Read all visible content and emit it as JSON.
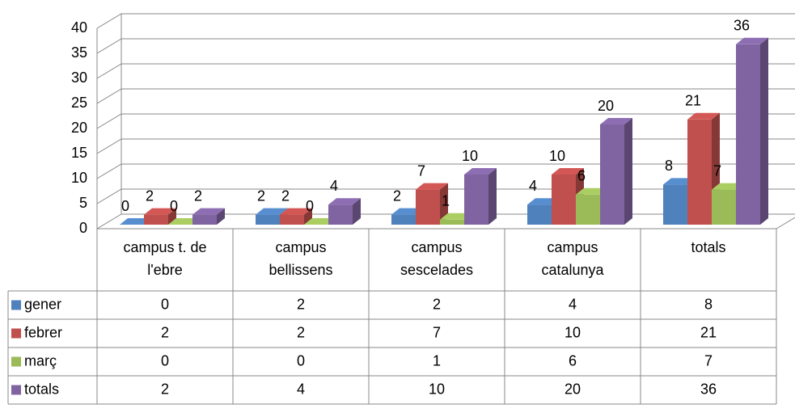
{
  "chart_data": {
    "type": "bar3d",
    "categories": [
      "campus t. de l'ebre",
      "campus bellissens",
      "campus sescelades",
      "campus catalunya",
      "totals"
    ],
    "series": [
      {
        "name": "gener",
        "color": "#4f81bd",
        "values": [
          0,
          2,
          2,
          4,
          8
        ]
      },
      {
        "name": "febrer",
        "color": "#c0504d",
        "values": [
          2,
          2,
          7,
          10,
          21
        ]
      },
      {
        "name": "març",
        "color": "#9bbb59",
        "values": [
          0,
          0,
          1,
          6,
          7
        ]
      },
      {
        "name": "totals",
        "color": "#8064a2",
        "values": [
          2,
          4,
          10,
          20,
          36
        ]
      }
    ],
    "ylim": [
      0,
      40
    ],
    "yticks": [
      0,
      5,
      10,
      15,
      20,
      25,
      30,
      35,
      40
    ],
    "grid": true,
    "data_table": true
  }
}
